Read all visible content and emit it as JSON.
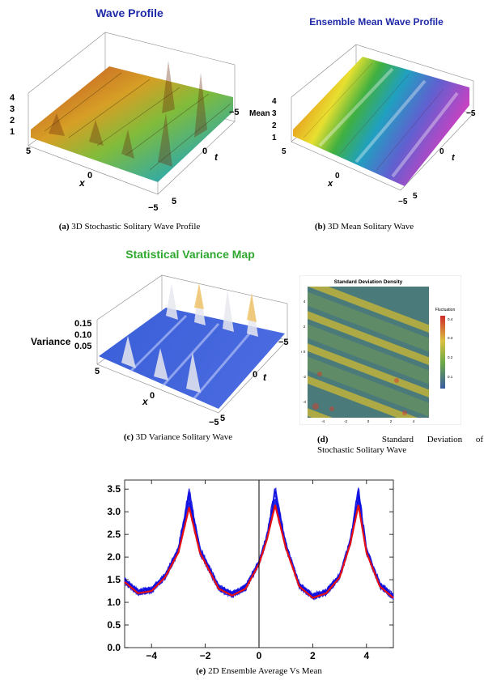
{
  "panels": {
    "a": {
      "title": "Wave Profile",
      "caption_letter": "(a)",
      "caption_text": "3D Stochastic Solitary Wave Profile",
      "z_ticks": [
        "1",
        "2",
        "3",
        "4"
      ],
      "x_ticks": [
        "5",
        "0",
        "−5"
      ],
      "t_ticks": [
        "−5",
        "0",
        "5"
      ],
      "x_label": "x",
      "t_label": "t",
      "title_color": "#1f2aa8"
    },
    "b": {
      "title": "Ensemble Mean Wave Profile",
      "caption_letter": "(b)",
      "caption_text": "3D Mean Solitary Wave",
      "z_ticks": [
        "1",
        "2",
        "3",
        "4"
      ],
      "x_ticks": [
        "5",
        "0",
        "−5"
      ],
      "t_ticks": [
        "−5",
        "0",
        "5"
      ],
      "x_label": "x",
      "t_label": "t",
      "z_label": "Mean",
      "title_color": "#1f2aa8"
    },
    "c": {
      "title": "Statistical Variance Map",
      "caption_letter": "(c)",
      "caption_text": "3D Variance Solitary Wave",
      "z_ticks": [
        "0.05",
        "0.10",
        "0.15"
      ],
      "x_ticks": [
        "5",
        "0",
        "−5"
      ],
      "t_ticks": [
        "−5",
        "0",
        "5"
      ],
      "x_label": "x",
      "t_label": "t",
      "z_label": "Variance",
      "title_color": "#2fa82f"
    },
    "d": {
      "title": "Standard Deviation Density",
      "caption_letter": "(d)",
      "caption_line1": "Standard Deviation of",
      "caption_line2": "Stochastic Solitary Wave",
      "legend_title": "Fluctuation",
      "legend_ticks": [
        "0.4",
        "0.3",
        "0.2",
        "0.1"
      ],
      "x_ticks": [
        "-4",
        "-2",
        "0",
        "2",
        "4"
      ],
      "y_ticks": [
        "4",
        "2",
        "0",
        "-2",
        "-4"
      ],
      "x_label": "x",
      "y_label": "t"
    },
    "e": {
      "caption_letter": "(e)",
      "caption_text": "2D Ensemble Average Vs Mean"
    }
  },
  "chart_data": [
    {
      "type": "line",
      "panel": "e",
      "title": "",
      "xlabel": "",
      "ylabel": "",
      "xlim": [
        -5,
        5
      ],
      "ylim": [
        0,
        3.7
      ],
      "x_ticks": [
        -4,
        -2,
        0,
        2,
        4
      ],
      "y_ticks": [
        0.0,
        0.5,
        1.0,
        1.5,
        2.0,
        2.5,
        3.0,
        3.5
      ],
      "x_tick_labels": [
        "−4",
        "−2",
        "0",
        "2",
        "4"
      ],
      "y_tick_labels": [
        "0.0",
        "0.5",
        "1.0",
        "1.5",
        "2.0",
        "2.5",
        "3.0",
        "3.5"
      ],
      "peak_positions": [
        -2.6,
        0.6,
        3.7
      ],
      "series": [
        {
          "color": "#1010e0",
          "x": [
            -5,
            -4.5,
            -4,
            -3.5,
            -3,
            -2.6,
            -2.2,
            -1.5,
            -1,
            -0.5,
            0,
            0.3,
            0.6,
            1,
            1.5,
            2,
            2.5,
            3,
            3.4,
            3.7,
            4,
            4.5,
            5
          ],
          "y": [
            1.5,
            1.25,
            1.3,
            1.6,
            2.2,
            3.5,
            2.2,
            1.35,
            1.2,
            1.35,
            1.9,
            2.5,
            3.55,
            2.3,
            1.4,
            1.15,
            1.25,
            1.6,
            2.4,
            3.55,
            2.2,
            1.4,
            1.15
          ]
        },
        {
          "color": "#e81010",
          "x": [
            -5,
            -4.5,
            -4,
            -3.5,
            -3,
            -2.6,
            -2.2,
            -1.5,
            -1,
            -0.5,
            0,
            0.3,
            0.6,
            1,
            1.5,
            2,
            2.5,
            3,
            3.4,
            3.7,
            4,
            4.5,
            5
          ],
          "y": [
            1.45,
            1.2,
            1.25,
            1.55,
            2.1,
            3.1,
            2.1,
            1.3,
            1.15,
            1.3,
            1.85,
            2.4,
            3.15,
            2.2,
            1.35,
            1.1,
            1.2,
            1.55,
            2.3,
            3.15,
            2.1,
            1.35,
            1.1
          ]
        }
      ]
    },
    {
      "type": "heatmap",
      "panel": "d",
      "title": "Standard Deviation Density",
      "xlabel": "x",
      "ylabel": "t",
      "xlim": [
        -5,
        5
      ],
      "ylim": [
        -5,
        5
      ],
      "x_ticks": [
        "-4",
        "-2",
        "0",
        "2",
        "4"
      ],
      "y_ticks": [
        "-4",
        "-2",
        "0",
        "2",
        "4"
      ],
      "colorbar_title": "Fluctuation",
      "colorbar_range": [
        0.05,
        0.45
      ],
      "colorbar_ticks": [
        "0.1",
        "0.2",
        "0.3",
        "0.4"
      ]
    }
  ],
  "colors": {
    "blue_title": "#1f2aa8",
    "green_title": "#2fa82f",
    "ensemble": "#1010e0",
    "mean": "#e81010"
  }
}
